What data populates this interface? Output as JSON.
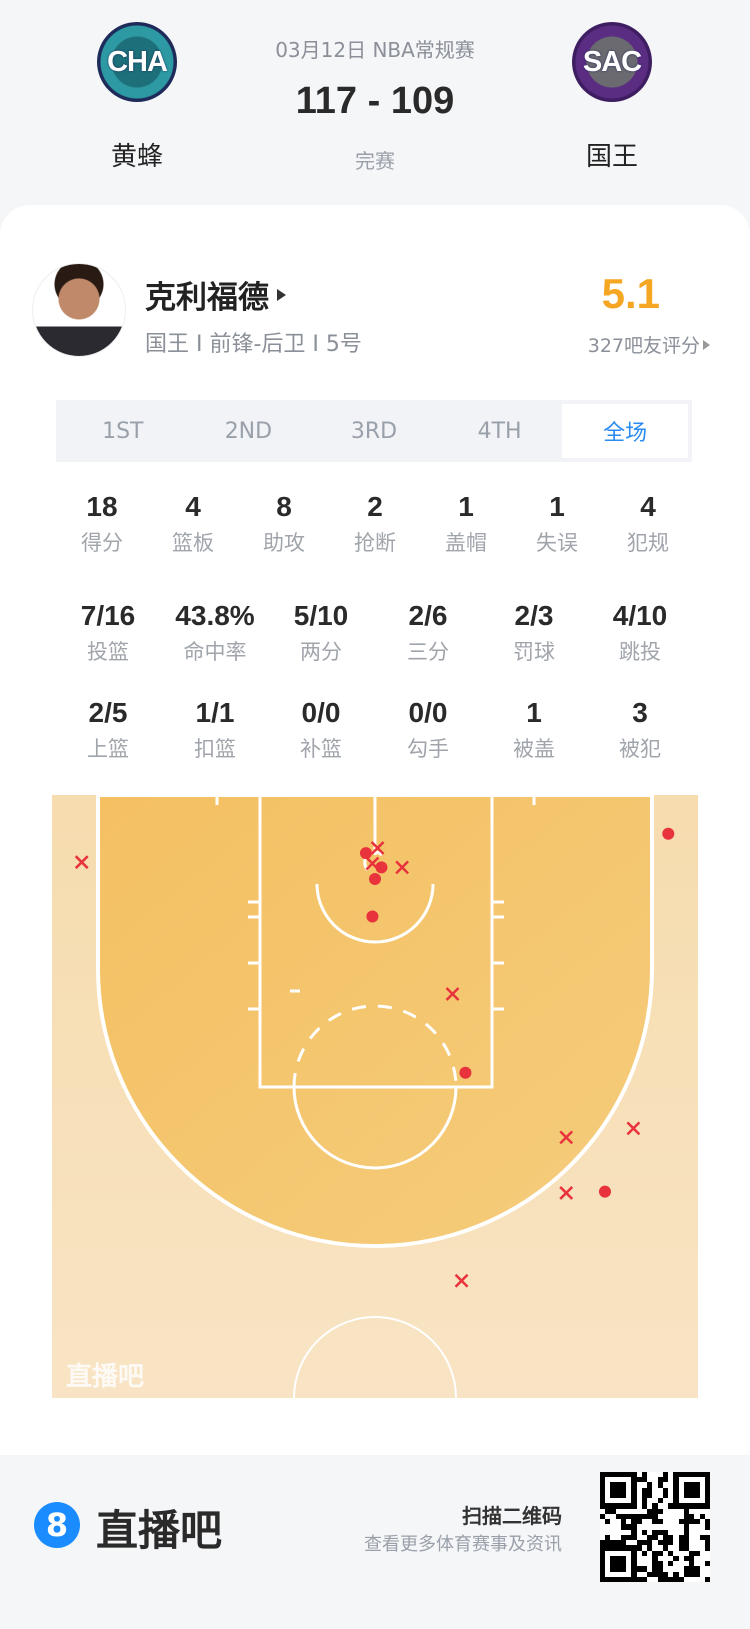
{
  "header": {
    "date_league": "03月12日 NBA常规赛",
    "score": "117 - 109",
    "status": "完赛",
    "home": {
      "abbr": "CHA",
      "name": "黄蜂",
      "color": "#1d6f7a"
    },
    "away": {
      "abbr": "SAC",
      "name": "国王",
      "color": "#5a2d82"
    }
  },
  "player": {
    "name": "克利福德",
    "info": "国王 I 前锋-后卫 I 5号",
    "rating": "5.1",
    "rating_count": "327吧友评分",
    "rating_color": "#f5a623"
  },
  "tabs": [
    "1ST",
    "2ND",
    "3RD",
    "4TH",
    "全场"
  ],
  "active_tab": "全场",
  "stats_row1": [
    {
      "v": "18",
      "l": "得分"
    },
    {
      "v": "4",
      "l": "篮板"
    },
    {
      "v": "8",
      "l": "助攻"
    },
    {
      "v": "2",
      "l": "抢断"
    },
    {
      "v": "1",
      "l": "盖帽"
    },
    {
      "v": "1",
      "l": "失误"
    },
    {
      "v": "4",
      "l": "犯规"
    }
  ],
  "stats_row2": [
    {
      "v": "7/16",
      "l": "投篮"
    },
    {
      "v": "43.8%",
      "l": "命中率"
    },
    {
      "v": "5/10",
      "l": "两分"
    },
    {
      "v": "2/6",
      "l": "三分"
    },
    {
      "v": "2/3",
      "l": "罚球"
    },
    {
      "v": "4/10",
      "l": "跳投"
    }
  ],
  "stats_row3": [
    {
      "v": "2/5",
      "l": "上篮"
    },
    {
      "v": "1/1",
      "l": "扣篮"
    },
    {
      "v": "0/0",
      "l": "补篮"
    },
    {
      "v": "0/0",
      "l": "勾手"
    },
    {
      "v": "1",
      "l": "被盖"
    },
    {
      "v": "3",
      "l": "被犯"
    }
  ],
  "chart_data": {
    "type": "scatter",
    "description_units": "feet: x from basket center line (-25..25), y from baseline",
    "shot_color": "#e8323c",
    "watermark": "直播吧",
    "shots": [
      {
        "x": -22.7,
        "y": 5.2,
        "made": false
      },
      {
        "x": 22.7,
        "y": 3.0,
        "made": true
      },
      {
        "x": -0.7,
        "y": 4.5,
        "made": true
      },
      {
        "x": 0.2,
        "y": 4.1,
        "made": false
      },
      {
        "x": -0.2,
        "y": 5.3,
        "made": false
      },
      {
        "x": 0.5,
        "y": 5.6,
        "made": true
      },
      {
        "x": 2.1,
        "y": 5.6,
        "made": false
      },
      {
        "x": 0.0,
        "y": 6.5,
        "made": true
      },
      {
        "x": -0.2,
        "y": 9.4,
        "made": true
      },
      {
        "x": 6.0,
        "y": 15.4,
        "made": false
      },
      {
        "x": 7.0,
        "y": 21.5,
        "made": true
      },
      {
        "x": 14.8,
        "y": 26.5,
        "made": false
      },
      {
        "x": 20.0,
        "y": 25.8,
        "made": false
      },
      {
        "x": 14.8,
        "y": 30.8,
        "made": false
      },
      {
        "x": 17.8,
        "y": 30.7,
        "made": true
      },
      {
        "x": 6.7,
        "y": 37.6,
        "made": false
      }
    ]
  },
  "footer": {
    "brand": "直播吧",
    "brand_mark": "8",
    "scan": "扫描二维码",
    "scan_sub": "查看更多体育赛事及资讯",
    "brand_color": "#1a8cff"
  }
}
